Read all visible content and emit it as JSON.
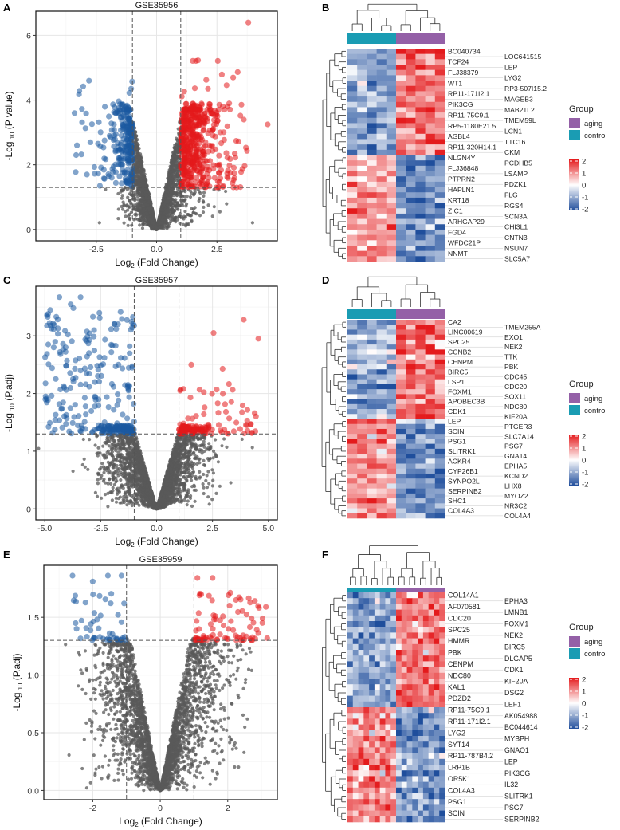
{
  "panel_labels": [
    "A",
    "B",
    "C",
    "D",
    "E",
    "F"
  ],
  "colors": {
    "up": "#e41a1c",
    "down": "#1c5aa0",
    "ns": "#5a5a5a",
    "aging": "#9460a7",
    "control": "#1a9cb3",
    "scale_low": "#1f4e9c",
    "scale_mid": "#ffffff",
    "scale_high": "#e41a1c"
  },
  "chart_data": [
    {
      "type": "scatter",
      "panel": "A",
      "title": "GSE35956",
      "xlabel": {
        "main": "Log",
        "sub": "2",
        "rest": " (Fold Change)"
      },
      "ylabel": {
        "main": "-Log",
        "sub": "10",
        "rest": " (P value)"
      },
      "xlim": [
        -5.0,
        5.0
      ],
      "ylim": [
        -0.35,
        6.75
      ],
      "xticks": [
        -2.5,
        0,
        2.5
      ],
      "xtick_labels": [
        "-2.5",
        "0.0",
        "2.5"
      ],
      "yticks": [
        0,
        2,
        4,
        6
      ],
      "ytick_labels": [
        "0",
        "2",
        "4",
        "6"
      ],
      "fc_cutoff": 1,
      "p_cutoff": 1.3,
      "grid": true,
      "sim": {
        "n": 3000,
        "sd_left": 0.7,
        "sd_right": 1.05,
        "slope": 3.3,
        "cap": 3.9,
        "up": {
          "count": 70,
          "x": [
            1,
            3.8
          ],
          "y": [
            1.3,
            5.3
          ]
        },
        "down": {
          "count": 45,
          "x": [
            -3.4,
            -1
          ],
          "y": [
            1.3,
            4.6
          ]
        },
        "outliers": [
          [
            3.8,
            6.4
          ],
          [
            4.6,
            3.25
          ],
          [
            -3.4,
            3.6
          ],
          [
            -2.8,
            4.6
          ]
        ]
      }
    },
    {
      "type": "scatter",
      "panel": "C",
      "title": "GSE35957",
      "xlabel": {
        "main": "Log",
        "sub": "2",
        "rest": " (Fold Change)"
      },
      "ylabel": {
        "main": "-Log",
        "sub": "10",
        "rest": " (P.adj)"
      },
      "xlim": [
        -5.4,
        5.4
      ],
      "ylim": [
        -0.19,
        3.86
      ],
      "xticks": [
        -5,
        -2.5,
        0,
        2.5,
        5
      ],
      "xtick_labels": [
        "-5.0",
        "-2.5",
        "0.0",
        "2.5",
        "5.0"
      ],
      "yticks": [
        0,
        1,
        2,
        3
      ],
      "ytick_labels": [
        "0",
        "1",
        "2",
        "3"
      ],
      "fc_cutoff": 1,
      "p_cutoff": 1.3,
      "grid": true,
      "sim": {
        "n": 3000,
        "sd_left": 1.1,
        "sd_right": 1.0,
        "slope": 1.3,
        "cap": 1.45,
        "up": {
          "count": 55,
          "x": [
            1,
            4.5
          ],
          "y": [
            1.3,
            2.2
          ]
        },
        "down": {
          "count": 190,
          "x": [
            -5,
            -1
          ],
          "y": [
            1.3,
            3.6
          ]
        },
        "outliers": [
          [
            3.9,
            3.28
          ],
          [
            2.55,
            3.05
          ],
          [
            4.55,
            2.95
          ],
          [
            2.95,
            2.43
          ],
          [
            1.55,
            2.5
          ],
          [
            -4.35,
            3.67
          ],
          [
            -3.4,
            3.67
          ],
          [
            -4.85,
            3.38
          ]
        ]
      }
    },
    {
      "type": "scatter",
      "panel": "E",
      "title": "GSE35959",
      "xlabel": {
        "main": "Log",
        "sub": "2",
        "rest": " (Fold Change)"
      },
      "ylabel": {
        "main": "-Log",
        "sub": "10",
        "rest": " (P.adj)"
      },
      "xlim": [
        -3.45,
        3.47
      ],
      "ylim": [
        -0.08,
        1.95
      ],
      "xticks": [
        -2,
        0,
        2
      ],
      "xtick_labels": [
        "-2",
        "0",
        "2"
      ],
      "yticks": [
        0,
        0.5,
        1.0,
        1.5
      ],
      "ytick_labels": [
        "0.0",
        "0.5",
        "1.0",
        "1.5"
      ],
      "fc_cutoff": 1,
      "p_cutoff": 1.3,
      "grid": true,
      "sim": {
        "n": 3000,
        "sd_left": 0.85,
        "sd_right": 0.9,
        "slope": 1.4,
        "cap": 1.33,
        "up": {
          "count": 65,
          "x": [
            1,
            3.2
          ],
          "y": [
            1.3,
            1.72
          ]
        },
        "down": {
          "count": 30,
          "x": [
            -2.7,
            -1
          ],
          "y": [
            1.3,
            1.72
          ]
        },
        "outliers": [
          [
            -2.6,
            1.86
          ],
          [
            -1.55,
            1.86
          ],
          [
            -1.15,
            1.86
          ],
          [
            -2.0,
            1.81
          ],
          [
            1.1,
            1.84
          ],
          [
            1.55,
            1.84
          ]
        ]
      }
    },
    {
      "type": "heatmap",
      "panel": "B",
      "n_control": 5,
      "n_aging": 5,
      "legend": {
        "title": "Group",
        "groups": [
          "aging",
          "control"
        ],
        "scale_ticks": [
          "2",
          "1",
          "0",
          "-1",
          "-2"
        ]
      },
      "genes_up_in_aging": [
        "BC040734",
        "LOC641515",
        "TCF24",
        "LEP",
        "FLJ38379",
        "LYG2",
        "WT1",
        "RP3-507I15.2",
        "RP11-171I2.1",
        "MAGEB3",
        "PIK3CG",
        "MAB21L2",
        "RP11-75C9.1",
        "TMEM59L",
        "RP5-1180E21.5",
        "LCN1",
        "AGBL4",
        "TTC16",
        "RP11-320H14.1",
        "CKM"
      ],
      "genes_down_in_aging": [
        "NLGN4Y",
        "PCDHB5",
        "FLJ36848",
        "LSAMP",
        "PTPRN2",
        "PDZK1",
        "HAPLN1",
        "FLG",
        "KRT18",
        "RGS4",
        "ZIC1",
        "SCN3A",
        "ARHGAP29",
        "CHI3L1",
        "FGD4",
        "CNTN3",
        "WFDC21P",
        "NSUN7",
        "NNMT",
        "SLC5A7"
      ]
    },
    {
      "type": "heatmap",
      "panel": "D",
      "n_control": 5,
      "n_aging": 5,
      "legend": {
        "title": "Group",
        "groups": [
          "aging",
          "control"
        ],
        "scale_ticks": [
          "2",
          "1",
          "0",
          "-1",
          "-2"
        ]
      },
      "genes_up_in_aging": [
        "CA2",
        "TMEM255A",
        "LINC00619",
        "EXO1",
        "SPC25",
        "NEK2",
        "CCNB2",
        "TTK",
        "CENPM",
        "PBK",
        "BIRC5",
        "CDC45",
        "LSP1",
        "CDC20",
        "FOXM1",
        "SOX11",
        "APOBEC3B",
        "NDC80",
        "CDK1",
        "KIF20A"
      ],
      "genes_down_in_aging": [
        "LEP",
        "PTGER3",
        "SCIN",
        "SLC7A14",
        "PSG1",
        "PSG7",
        "SLITRK1",
        "GNA14",
        "ACKR4",
        "EPHA5",
        "CYP26B1",
        "KCND2",
        "SYNPO2L",
        "LHX8",
        "SERPINB2",
        "MYOZ2",
        "SHC1",
        "NR3C2",
        "COL4A3",
        "COL4A4"
      ]
    },
    {
      "type": "heatmap",
      "panel": "F",
      "n_control": 9,
      "n_aging": 9,
      "legend": {
        "title": "Group",
        "groups": [
          "aging",
          "control"
        ],
        "scale_ticks": [
          "2",
          "1",
          "0",
          "-1",
          "-2"
        ]
      },
      "genes_up_in_aging": [
        "COL14A1",
        "EPHA3",
        "AF070581",
        "LMNB1",
        "CDC20",
        "FOXM1",
        "SPC25",
        "NEK2",
        "HMMR",
        "BIRC5",
        "PBK",
        "DLGAP5",
        "CENPM",
        "CDK1",
        "NDC80",
        "KIF20A",
        "KAL1",
        "DSG2",
        "PDZD2",
        "LEF1"
      ],
      "genes_down_in_aging": [
        "RP11-75C9.1",
        "AK054988",
        "RP11-171I2.1",
        "BC044614",
        "LYG2",
        "MYBPH",
        "SYT14",
        "GNAO1",
        "RP11-787B4.2",
        "LEP",
        "LRP1B",
        "PIK3CG",
        "OR5K1",
        "IL32",
        "COL4A3",
        "SLITRK1",
        "PSG1",
        "PSG7",
        "SCIN",
        "SERPINB2"
      ]
    }
  ]
}
